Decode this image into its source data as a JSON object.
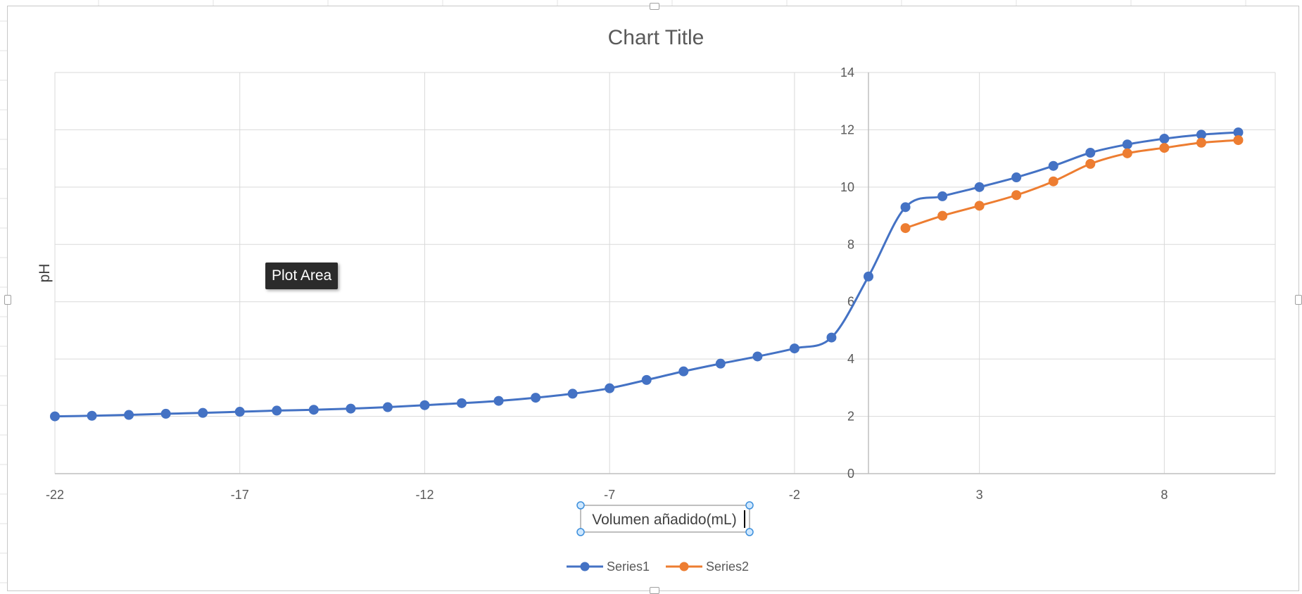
{
  "chart_data": {
    "type": "line",
    "title": "Chart Title",
    "xlabel": "Volumen añadido(mL)",
    "ylabel": "pH",
    "xlim": [
      -22,
      11
    ],
    "ylim": [
      0,
      14
    ],
    "x_ticks": [
      -22,
      -17,
      -12,
      -7,
      -2,
      3,
      8
    ],
    "y_ticks": [
      0,
      2,
      4,
      6,
      8,
      10,
      12,
      14
    ],
    "y_axis_crosses_at_x": 0,
    "grid": true,
    "smooth": true,
    "legend_position": "bottom",
    "series": [
      {
        "name": "Series1",
        "color": "#4472C4",
        "points": [
          [
            -22,
            2.0
          ],
          [
            -21,
            2.02
          ],
          [
            -20,
            2.05
          ],
          [
            -19,
            2.09
          ],
          [
            -18,
            2.12
          ],
          [
            -17,
            2.16
          ],
          [
            -16,
            2.2
          ],
          [
            -15,
            2.23
          ],
          [
            -14,
            2.27
          ],
          [
            -13,
            2.32
          ],
          [
            -12,
            2.39
          ],
          [
            -11,
            2.46
          ],
          [
            -10,
            2.54
          ],
          [
            -9,
            2.65
          ],
          [
            -8,
            2.79
          ],
          [
            -7,
            2.98
          ],
          [
            -6,
            3.27
          ],
          [
            -5,
            3.57
          ],
          [
            -4,
            3.84
          ],
          [
            -3,
            4.09
          ],
          [
            -2,
            4.37
          ],
          [
            -1,
            4.75
          ],
          [
            0,
            6.88
          ],
          [
            1,
            9.3
          ],
          [
            2,
            9.68
          ],
          [
            3,
            10.0
          ],
          [
            4,
            10.34
          ],
          [
            5,
            10.74
          ],
          [
            6,
            11.2
          ],
          [
            7,
            11.49
          ],
          [
            8,
            11.69
          ],
          [
            9,
            11.83
          ],
          [
            10,
            11.91
          ]
        ]
      },
      {
        "name": "Series2",
        "color": "#ED7D31",
        "points": [
          [
            1,
            8.57
          ],
          [
            2,
            9.0
          ],
          [
            3,
            9.35
          ],
          [
            4,
            9.72
          ],
          [
            5,
            10.2
          ],
          [
            6,
            10.81
          ],
          [
            7,
            11.18
          ],
          [
            8,
            11.37
          ],
          [
            9,
            11.55
          ],
          [
            10,
            11.64
          ]
        ]
      }
    ]
  },
  "tooltip": {
    "text": "Plot Area"
  },
  "colors": {
    "gridline": "#d9d9d9",
    "axis": "#bfbfbf",
    "text": "#595959"
  }
}
